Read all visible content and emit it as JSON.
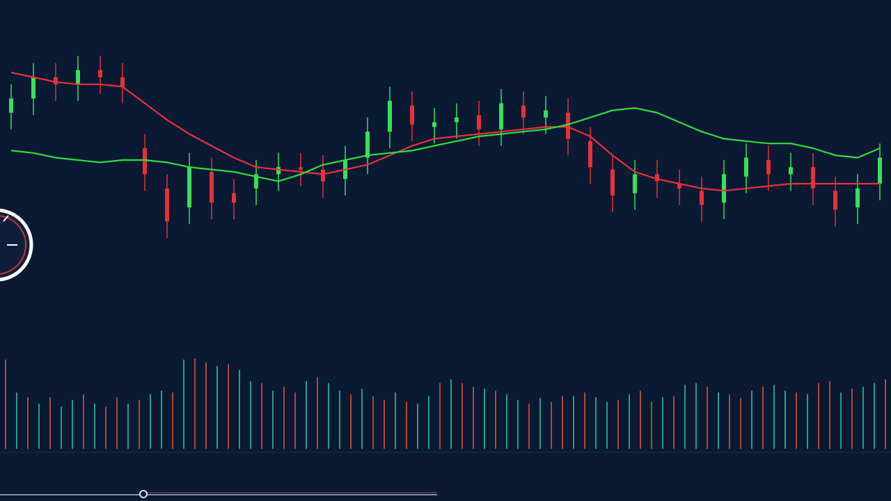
{
  "chart_data": [
    {
      "type": "candlestick",
      "categories": [
        null,
        null,
        null,
        null,
        null,
        null,
        null,
        null,
        null,
        null,
        null,
        null,
        null,
        null,
        null,
        null,
        null,
        null,
        null,
        null,
        null,
        null,
        null,
        null,
        null,
        null,
        null,
        null,
        null,
        null,
        null,
        null,
        null,
        null,
        null,
        null,
        null,
        null,
        null,
        null
      ],
      "open": [
        70,
        76,
        85,
        82,
        88,
        85,
        55,
        38,
        30,
        45,
        36,
        38,
        44,
        47,
        46,
        42,
        51,
        62,
        73,
        64,
        66,
        69,
        63,
        73,
        68,
        70,
        58,
        46,
        36,
        44,
        40,
        37,
        32,
        43,
        50,
        44,
        47,
        37,
        30,
        40
      ],
      "high": [
        82,
        91,
        91,
        94,
        94,
        91,
        61,
        44,
        53,
        51,
        42,
        50,
        53,
        53,
        52,
        56,
        68,
        81,
        79,
        72,
        74,
        75,
        80,
        79,
        77,
        76,
        64,
        52,
        50,
        50,
        46,
        43,
        50,
        57,
        56,
        53,
        53,
        43,
        44,
        57
      ],
      "low": [
        63,
        69,
        75,
        75,
        78,
        74,
        37,
        17,
        23,
        25,
        25,
        31,
        37,
        39,
        34,
        35,
        44,
        55,
        58,
        57,
        59,
        56,
        56,
        61,
        61,
        52,
        40,
        28,
        29,
        34,
        31,
        24,
        25,
        36,
        37,
        37,
        31,
        22,
        23,
        33
      ],
      "close": [
        76,
        85,
        82,
        88,
        85,
        81,
        44,
        24,
        47,
        32,
        32,
        44,
        47,
        46,
        41,
        50,
        62,
        75,
        65,
        66,
        68,
        63,
        74,
        68,
        71,
        59,
        47,
        35,
        44,
        41,
        38,
        31,
        44,
        51,
        44,
        47,
        38,
        29,
        38,
        51
      ],
      "up_color": "#38e05a",
      "down_color": "#e8303a",
      "series": [
        {
          "color": "#e8323c",
          "values": [
            87,
            85,
            83,
            82,
            82,
            81,
            74,
            67,
            61,
            56,
            51,
            47,
            46,
            45,
            44,
            46,
            48,
            52,
            56,
            59,
            60,
            61,
            62,
            63,
            64,
            64,
            60,
            52,
            45,
            42,
            40,
            38,
            37,
            38,
            39,
            40,
            40,
            40,
            40,
            40
          ]
        },
        {
          "color": "#2fe03a",
          "values": [
            54,
            53,
            51,
            50,
            49,
            50,
            50,
            49,
            47,
            46,
            45,
            43,
            41,
            44,
            48,
            50,
            52,
            53,
            54,
            56,
            58,
            60,
            61,
            62,
            63,
            65,
            68,
            71,
            72,
            70,
            66,
            62,
            59,
            58,
            57,
            57,
            55,
            52,
            51,
            55
          ]
        }
      ],
      "ylim": [
        0,
        100
      ]
    },
    {
      "type": "bar",
      "categories": [
        null,
        null,
        null,
        null,
        null,
        null,
        null,
        null,
        null,
        null,
        null,
        null,
        null,
        null,
        null,
        null,
        null,
        null,
        null,
        null,
        null,
        null,
        null,
        null,
        null,
        null,
        null,
        null,
        null,
        null,
        null,
        null,
        null,
        null,
        null,
        null,
        null,
        null,
        null,
        null,
        null,
        null,
        null,
        null,
        null,
        null,
        null,
        null,
        null,
        null,
        null,
        null,
        null,
        null,
        null,
        null,
        null,
        null,
        null,
        null,
        null,
        null,
        null,
        null,
        null,
        null,
        null,
        null,
        null,
        null,
        null,
        null,
        null,
        null,
        null,
        null,
        null,
        null,
        null,
        null
      ],
      "values": [
        95,
        60,
        55,
        48,
        55,
        45,
        52,
        58,
        48,
        45,
        55,
        48,
        52,
        58,
        62,
        60,
        95,
        96,
        92,
        88,
        90,
        84,
        72,
        70,
        62,
        66,
        60,
        72,
        76,
        70,
        62,
        58,
        64,
        56,
        52,
        60,
        50,
        48,
        56,
        70,
        74,
        70,
        66,
        64,
        62,
        58,
        52,
        48,
        54,
        50,
        56,
        56,
        60,
        55,
        50,
        52,
        58,
        62,
        50,
        55,
        56,
        68,
        70,
        66,
        60,
        58,
        54,
        62,
        66,
        68,
        62,
        60,
        58,
        70,
        72,
        60,
        64,
        66,
        70,
        74
      ],
      "colors": [
        "#d0513c",
        "#2bb89a",
        "#d0513c",
        "#2bb89a",
        "#d0513c",
        "#2bb89a",
        "#2bb89a",
        "#d0513c",
        "#2bb89a",
        "#d0513c",
        "#d0513c",
        "#2bb89a",
        "#d0513c",
        "#2bb89a",
        "#2bb89a",
        "#d0513c",
        "#2bb89a",
        "#d0513c",
        "#d0513c",
        "#2bb89a",
        "#d0513c",
        "#2bb89a",
        "#2bb89a",
        "#d0513c",
        "#2bb89a",
        "#d0513c",
        "#d0513c",
        "#2bb89a",
        "#d0513c",
        "#2bb89a",
        "#2bb89a",
        "#d0513c",
        "#2bb89a",
        "#d0513c",
        "#d0513c",
        "#2bb89a",
        "#d0513c",
        "#2bb89a",
        "#2bb89a",
        "#d0513c",
        "#2bb89a",
        "#d0513c",
        "#d0513c",
        "#2bb89a",
        "#d0513c",
        "#2bb89a",
        "#2bb89a",
        "#d0513c",
        "#2bb89a",
        "#d0513c",
        "#d0513c",
        "#2bb89a",
        "#d0513c",
        "#2bb89a",
        "#2bb89a",
        "#d0513c",
        "#2bb89a",
        "#d0513c",
        "#d0513c",
        "#2bb89a",
        "#d0513c",
        "#2bb89a",
        "#2bb89a",
        "#d0513c",
        "#2bb89a",
        "#d0513c",
        "#d0513c",
        "#2bb89a",
        "#d0513c",
        "#2bb89a",
        "#2bb89a",
        "#d0513c",
        "#2bb89a",
        "#d0513c",
        "#d0513c",
        "#2bb89a",
        "#d0513c",
        "#2bb89a",
        "#2bb89a",
        "#d0513c"
      ],
      "ylim": [
        0,
        100
      ]
    }
  ]
}
